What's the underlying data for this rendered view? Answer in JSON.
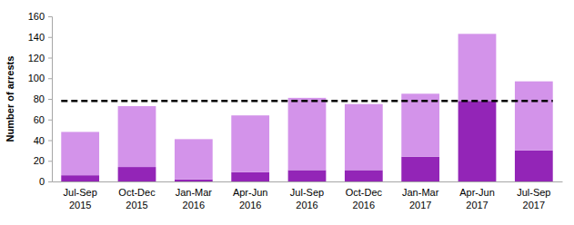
{
  "chart_data": {
    "type": "bar",
    "stacked": true,
    "y_label": "Number of arrests",
    "categories": [
      "Jul-Sep 2015",
      "Oct-Dec 2015",
      "Jan-Mar 2016",
      "Apr-Jun 2016",
      "Jul-Sep 2016",
      "Oct-Dec 2016",
      "Jan-Mar 2017",
      "Apr-Jun 2017",
      "Jul-Sep 2017"
    ],
    "series": [
      {
        "type": "bar",
        "color": "#9325b7",
        "values": [
          6,
          14,
          2,
          9,
          11,
          11,
          24,
          78,
          30
        ]
      },
      {
        "type": "bar",
        "color": "#d393ea",
        "values": [
          42,
          59,
          39,
          55,
          70,
          64,
          61,
          65,
          67
        ]
      },
      {
        "type": "line",
        "color": "#000000",
        "line_style": "dashed",
        "values": [
          78,
          78,
          78,
          78,
          78,
          78,
          78,
          78,
          78
        ]
      }
    ],
    "ylim": [
      0,
      160
    ],
    "yticks": [
      0,
      20,
      40,
      60,
      80,
      100,
      120,
      140,
      160
    ],
    "grid": false
  }
}
